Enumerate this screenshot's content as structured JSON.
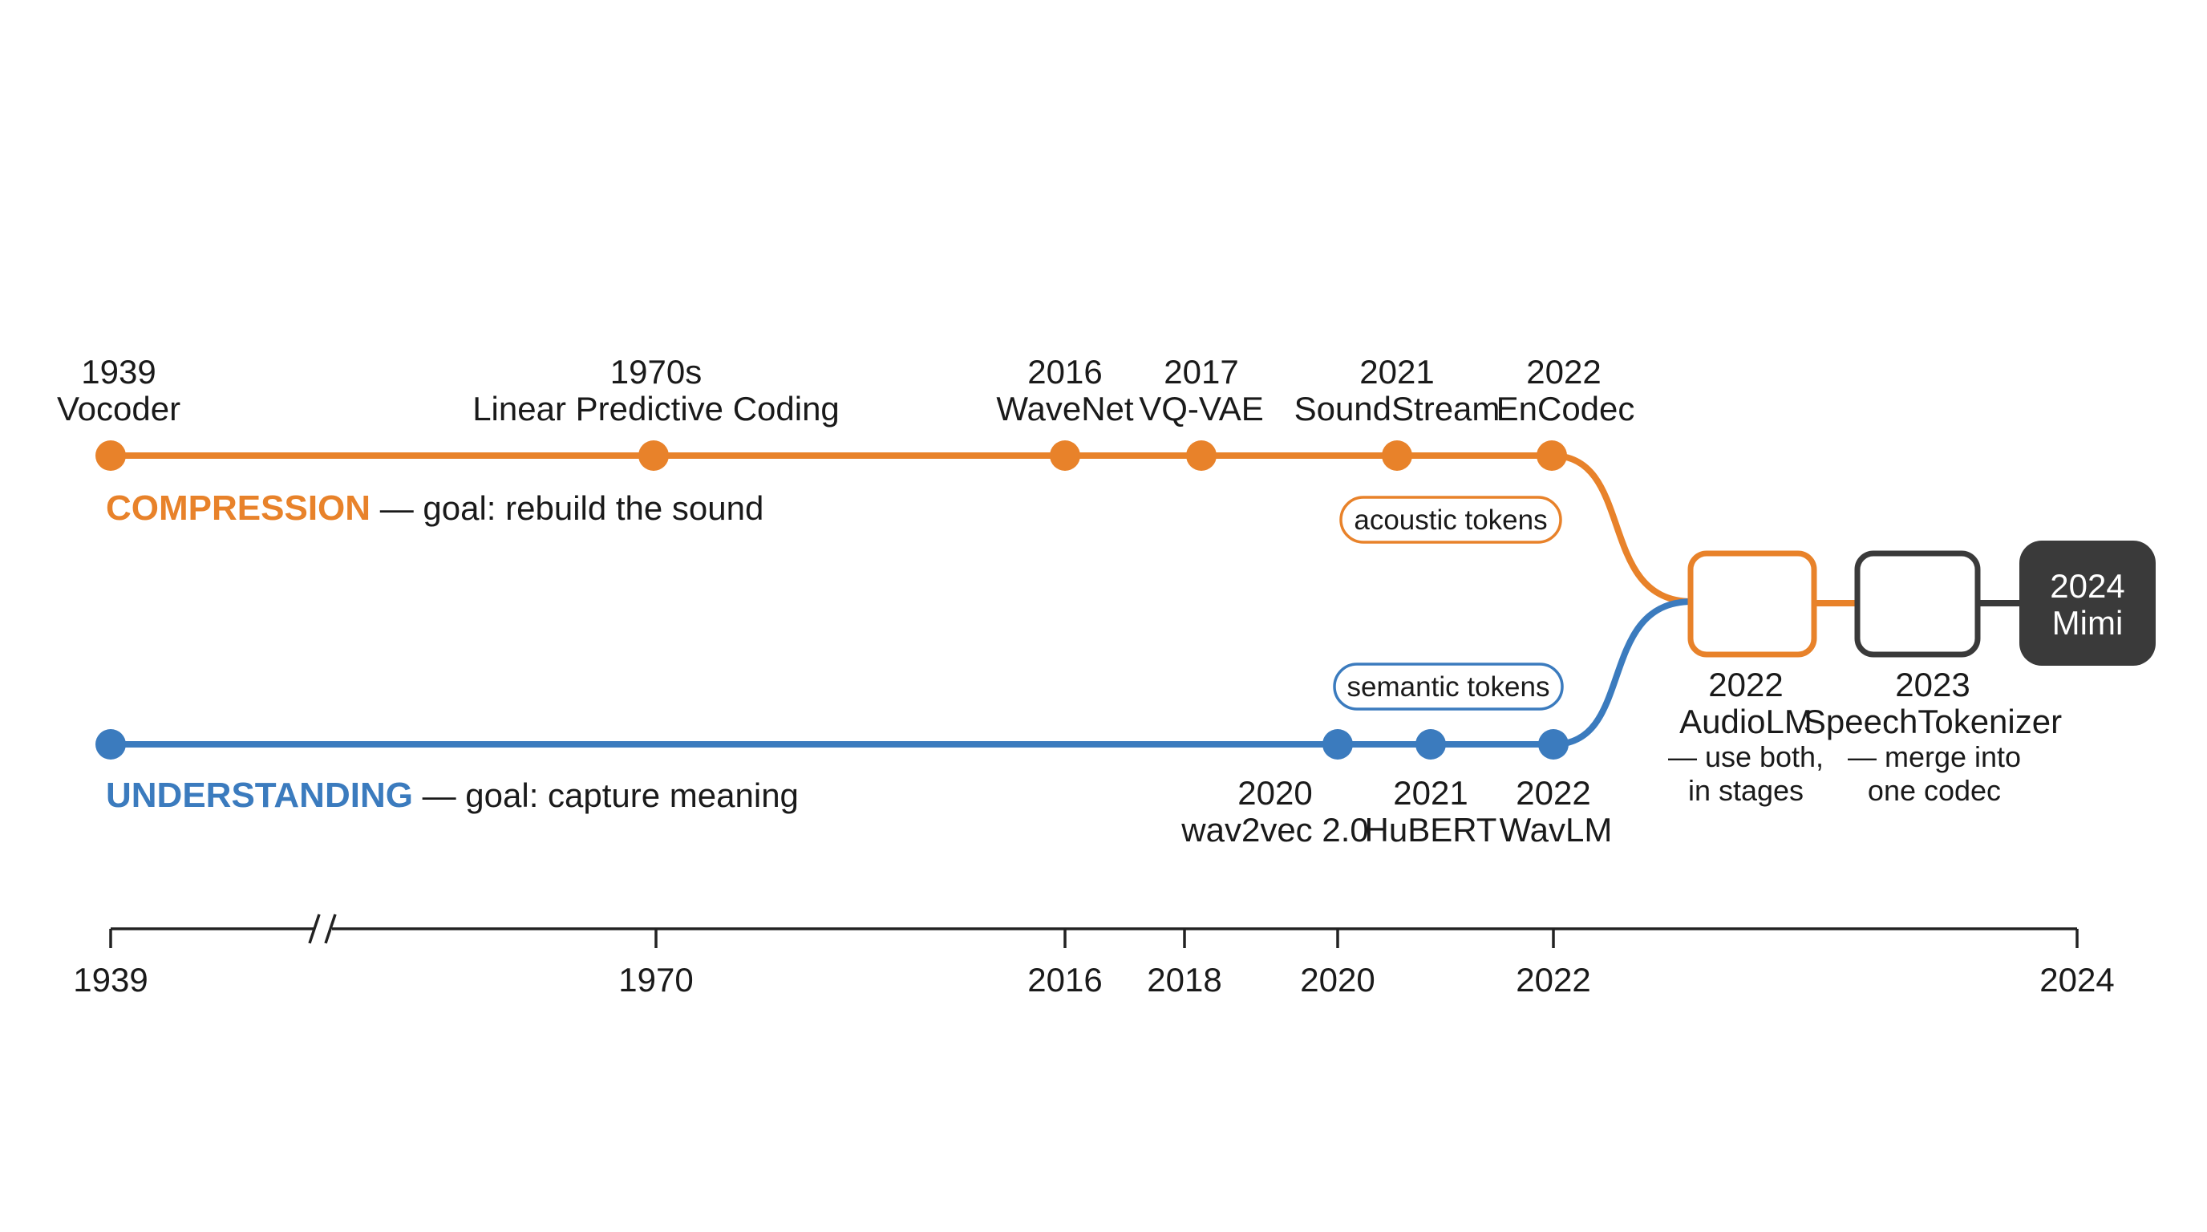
{
  "colors": {
    "compression": "#E8822A",
    "understanding": "#3B7BBE",
    "dark": "#3A3A3A",
    "axis": "#222222"
  },
  "compression": {
    "title": "COMPRESSION",
    "goal": " — goal: rebuild the sound",
    "pill": "acoustic tokens",
    "events": [
      {
        "year": "1939",
        "name": "Vocoder"
      },
      {
        "year": "1970s",
        "name": "Linear Predictive Coding"
      },
      {
        "year": "2016",
        "name": "WaveNet"
      },
      {
        "year": "2017",
        "name": "VQ-VAE"
      },
      {
        "year": "2021",
        "name": "SoundStream"
      },
      {
        "year": "2022",
        "name": "EnCodec"
      }
    ]
  },
  "understanding": {
    "title": "UNDERSTANDING",
    "goal": " — goal: capture meaning",
    "pill": "semantic tokens",
    "events": [
      {
        "year": "2020",
        "name": "wav2vec 2.0"
      },
      {
        "year": "2021",
        "name": "HuBERT"
      },
      {
        "year": "2022",
        "name": "WavLM"
      }
    ]
  },
  "merged": [
    {
      "year": "2022",
      "name": "AudioLM",
      "desc1": "— use both,",
      "desc2": "in stages"
    },
    {
      "year": "2023",
      "name": "SpeechTokenizer",
      "desc1": "— merge into",
      "desc2": "one codec"
    },
    {
      "year": "2024",
      "name": "Mimi"
    }
  ],
  "axis": {
    "ticks": [
      "1939",
      "1970",
      "2016",
      "2018",
      "2020",
      "2022",
      "2024"
    ],
    "break_mark": "//"
  }
}
